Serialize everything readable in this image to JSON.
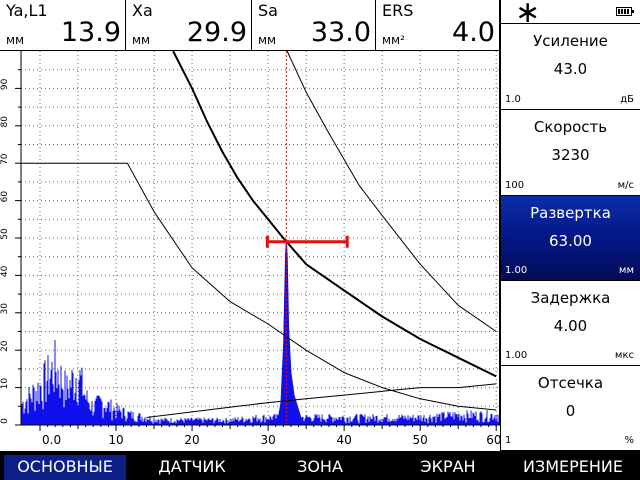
{
  "measurements": [
    {
      "name": "Ya,L1",
      "unit": "мм",
      "value": "13.9"
    },
    {
      "name": "Xa",
      "unit": "мм",
      "value": "29.9"
    },
    {
      "name": "Sa",
      "unit": "мм",
      "value": "33.0"
    },
    {
      "name": "ERS",
      "unit": "мм²",
      "value": "4.0"
    }
  ],
  "status": {
    "icon": "asterisk-icon",
    "battery_icon": "battery-icon"
  },
  "params": [
    {
      "title": "Усиление",
      "value": "43.0",
      "step": "1.0",
      "unit": "дБ",
      "active": false
    },
    {
      "title": "Скорость",
      "value": "3230",
      "step": "100",
      "unit": "м/с",
      "active": false
    },
    {
      "title": "Развертка",
      "value": "63.00",
      "step": "1.00",
      "unit": "мм",
      "active": true
    },
    {
      "title": "Задержка",
      "value": "4.00",
      "step": "1.00",
      "unit": "мкс",
      "active": false
    },
    {
      "title": "Отсечка",
      "value": "0",
      "step": "1",
      "unit": "%",
      "active": false
    }
  ],
  "menu": [
    {
      "label": "ОСНОВНЫЕ",
      "active": true
    },
    {
      "label": "ДАТЧИК",
      "active": false
    },
    {
      "label": "ЗОНА",
      "active": false
    },
    {
      "label": "ЭКРАН",
      "active": false
    },
    {
      "label": "ИЗМЕРЕНИЕ",
      "active": false
    }
  ],
  "chart_data": {
    "type": "line",
    "xlim": [
      -2.5,
      60.5
    ],
    "ylim": [
      0,
      100
    ],
    "x_ticks": [
      "0.0",
      "10",
      "20",
      "30",
      "40",
      "50",
      "60"
    ],
    "y_ticks": [
      "0",
      "10",
      "20",
      "30",
      "40",
      "50",
      "60",
      "70",
      "80",
      "90"
    ],
    "grid": true,
    "colors": {
      "signal": "#1010ee",
      "curves": "#000000",
      "gate": "#e01010",
      "grid": "#1d9a2a",
      "cursor": "#e01010"
    },
    "dac_curve_main": {
      "x": [
        17.5,
        20,
        22,
        24,
        26,
        28,
        30,
        32,
        35,
        40,
        45,
        50,
        55,
        60
      ],
      "y": [
        100,
        90,
        81,
        73,
        66,
        60,
        55,
        50,
        43,
        36,
        29,
        23,
        18,
        13
      ]
    },
    "dac_curve_upper": {
      "x": [
        32.5,
        35,
        38,
        42,
        45,
        50,
        55,
        60
      ],
      "y": [
        100,
        89,
        78,
        64,
        56,
        43,
        32,
        25
      ]
    },
    "dac_curve_lower": {
      "x": [
        11.5,
        15,
        20,
        25,
        30,
        35,
        40,
        45,
        50,
        55,
        60
      ],
      "y": [
        70,
        57,
        42,
        33,
        27,
        20,
        14,
        10,
        7,
        5,
        4
      ]
    },
    "dac_curve_lower2": {
      "x": [
        14,
        18,
        22,
        26,
        30,
        35,
        40,
        45,
        50,
        55,
        60
      ],
      "y": [
        2,
        3,
        4,
        5,
        6,
        7,
        8,
        9,
        10,
        10,
        11
      ]
    },
    "reference_level": {
      "x": [
        -2.5,
        11.5
      ],
      "y": [
        70,
        70
      ]
    },
    "gate": {
      "x_start": 29.9,
      "x_end": 40.4,
      "y": 49
    },
    "cursor_x": 32.4,
    "echo_peak": {
      "x": 32.4,
      "y": 49
    },
    "noise_envelope": [
      {
        "x": -2.5,
        "y": 8
      },
      {
        "x": 0,
        "y": 15
      },
      {
        "x": 2,
        "y": 23
      },
      {
        "x": 3.5,
        "y": 14
      },
      {
        "x": 5,
        "y": 21
      },
      {
        "x": 6,
        "y": 11
      },
      {
        "x": 7,
        "y": 7
      },
      {
        "x": 8,
        "y": 9
      },
      {
        "x": 10,
        "y": 6
      },
      {
        "x": 12,
        "y": 4
      },
      {
        "x": 14,
        "y": 3
      },
      {
        "x": 16,
        "y": 2
      },
      {
        "x": 20,
        "y": 2
      },
      {
        "x": 25,
        "y": 2
      },
      {
        "x": 29,
        "y": 3
      },
      {
        "x": 35,
        "y": 3
      },
      {
        "x": 40,
        "y": 3
      },
      {
        "x": 45,
        "y": 3
      },
      {
        "x": 50,
        "y": 3
      },
      {
        "x": 55,
        "y": 4
      },
      {
        "x": 60,
        "y": 4
      }
    ]
  }
}
